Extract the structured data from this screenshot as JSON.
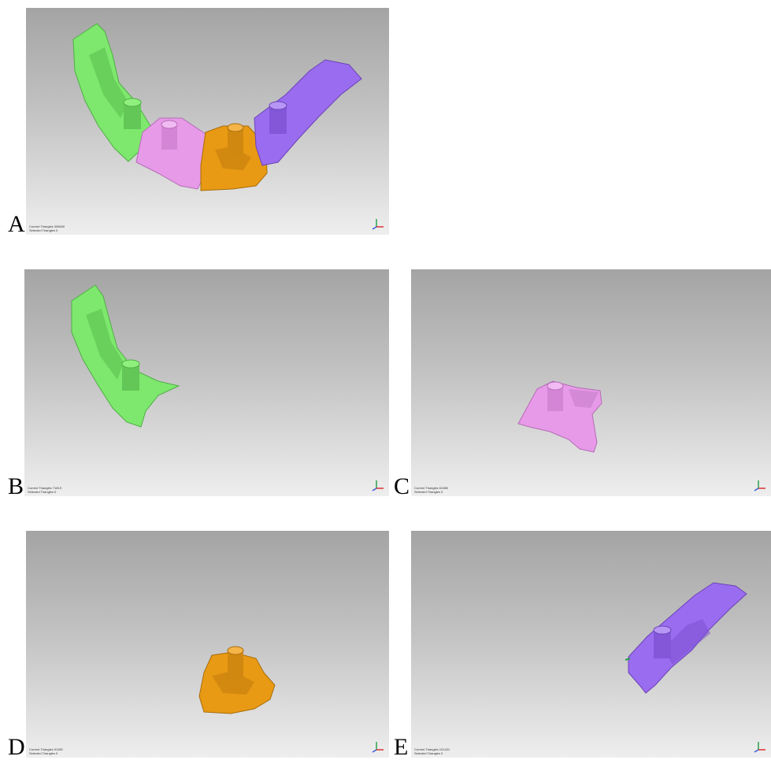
{
  "panels": [
    {
      "letter": "A",
      "status_line1": "Current Triangles 336840",
      "status_line2": "Selected Triangles 0"
    },
    {
      "letter": "B",
      "status_line1": "Current Triangles 71819",
      "status_line2": "Selected Triangles 0"
    },
    {
      "letter": "C",
      "status_line1": "Current Triangles 61380",
      "status_line2": "Selected Triangles 0"
    },
    {
      "letter": "D",
      "status_line1": "Current Triangles 91155",
      "status_line2": "Selected Triangles 0"
    },
    {
      "letter": "E",
      "status_line1": "Current Triangles 101421",
      "status_line2": "Selected Triangles 0"
    }
  ],
  "colors": {
    "green_segment": "#7ee86e",
    "pink_segment": "#e79ae8",
    "orange_segment": "#e89a14",
    "purple_segment": "#9a6cef",
    "background_top": "#a4a4a4",
    "background_bottom": "#eeeeee"
  },
  "icons": [
    "axis-triad-icon"
  ]
}
